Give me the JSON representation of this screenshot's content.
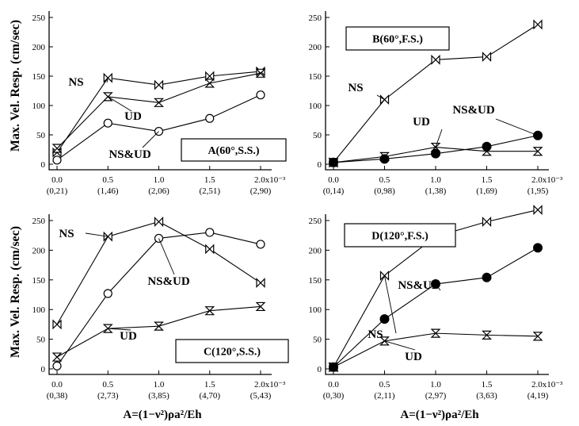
{
  "ylabel": "Max. Vel. Resp. (cm/sec)",
  "xaxis_label": "A=(1−ν²)ρa²/Eh",
  "chart_data": [
    {
      "type": "line",
      "panel": "A(60°,S.S.)",
      "x": [
        0.0,
        0.5,
        1.0,
        1.5,
        2.0
      ],
      "x_tick_labels": [
        "0.0",
        "0.5",
        "1.0",
        "1.5",
        "2.0x10⁻³"
      ],
      "x_sub_labels": [
        "(0,21)",
        "(1,46)",
        "(2,06)",
        "(2,51)",
        "(2,90)"
      ],
      "ylim": [
        0,
        250
      ],
      "y_ticks": [
        0,
        50,
        100,
        150,
        200,
        250
      ],
      "series": [
        {
          "name": "NS",
          "marker": "bowtie-h",
          "values": [
            20,
            147,
            135,
            150,
            158
          ]
        },
        {
          "name": "UD",
          "marker": "bowtie-v",
          "values": [
            27,
            115,
            105,
            138,
            155
          ]
        },
        {
          "name": "NS&UD",
          "marker": "circle-open",
          "values": [
            7,
            70,
            56,
            78,
            118
          ]
        }
      ],
      "labels": [
        "NS",
        "UD",
        "NS&UD"
      ]
    },
    {
      "type": "line",
      "panel": "B(60°,F.S.)",
      "x": [
        0.0,
        0.5,
        1.0,
        1.5,
        2.0
      ],
      "x_tick_labels": [
        "0.0",
        "0.5",
        "1.0",
        "1.5",
        "2.0x10⁻³"
      ],
      "x_sub_labels": [
        "(0,14)",
        "(0,98)",
        "(1,38)",
        "(1,69)",
        "(1,95)"
      ],
      "ylim": [
        0,
        250
      ],
      "y_ticks": [
        0,
        50,
        100,
        150,
        200,
        250
      ],
      "series": [
        {
          "name": "NS",
          "marker": "bowtie-h",
          "values": [
            3,
            110,
            178,
            183,
            238
          ]
        },
        {
          "name": "UD",
          "marker": "bowtie-v",
          "values": [
            3,
            13,
            29,
            22,
            22
          ]
        },
        {
          "name": "NS&UD",
          "marker": "circle-filled",
          "values": [
            3,
            9,
            18,
            30,
            49
          ]
        }
      ],
      "labels": [
        "NS",
        "UD",
        "NS&UD"
      ]
    },
    {
      "type": "line",
      "panel": "C(120°,S.S.)",
      "x": [
        0.0,
        0.5,
        1.0,
        1.5,
        2.0
      ],
      "x_tick_labels": [
        "0.0",
        "0.5",
        "1.0",
        "1.5",
        "2.0x10⁻³"
      ],
      "x_sub_labels": [
        "(0,38)",
        "(2,73)",
        "(3,85)",
        "(4,70)",
        "(5,43)"
      ],
      "ylim": [
        0,
        250
      ],
      "y_ticks": [
        0,
        50,
        100,
        150,
        200,
        250
      ],
      "series": [
        {
          "name": "NS",
          "marker": "bowtie-h",
          "values": [
            75,
            223,
            248,
            202,
            145
          ]
        },
        {
          "name": "UD",
          "marker": "bowtie-v",
          "values": [
            20,
            68,
            72,
            98,
            105
          ]
        },
        {
          "name": "NS&UD",
          "marker": "circle-open",
          "values": [
            5,
            127,
            220,
            230,
            210
          ]
        }
      ],
      "labels": [
        "NS",
        "NS&UD",
        "UD"
      ]
    },
    {
      "type": "line",
      "panel": "D(120°,F.S.)",
      "x": [
        0.0,
        0.5,
        1.0,
        1.5,
        2.0
      ],
      "x_tick_labels": [
        "0.0",
        "0.5",
        "1.0",
        "1.5",
        "2.0x10⁻³"
      ],
      "x_sub_labels": [
        "(0,30)",
        "(2,11)",
        "(2,97)",
        "(3,63)",
        "(4,19)"
      ],
      "ylim": [
        0,
        250
      ],
      "y_ticks": [
        0,
        50,
        100,
        150,
        200,
        250
      ],
      "series": [
        {
          "name": "NS",
          "marker": "bowtie-h",
          "values": [
            3,
            157,
            223,
            248,
            268
          ]
        },
        {
          "name": "UD",
          "marker": "bowtie-v",
          "values": [
            3,
            47,
            60,
            57,
            55
          ]
        },
        {
          "name": "NS&UD",
          "marker": "circle-filled",
          "values": [
            3,
            84,
            143,
            154,
            204
          ]
        }
      ],
      "labels": [
        "NS",
        "NS&UD",
        "UD"
      ]
    }
  ]
}
